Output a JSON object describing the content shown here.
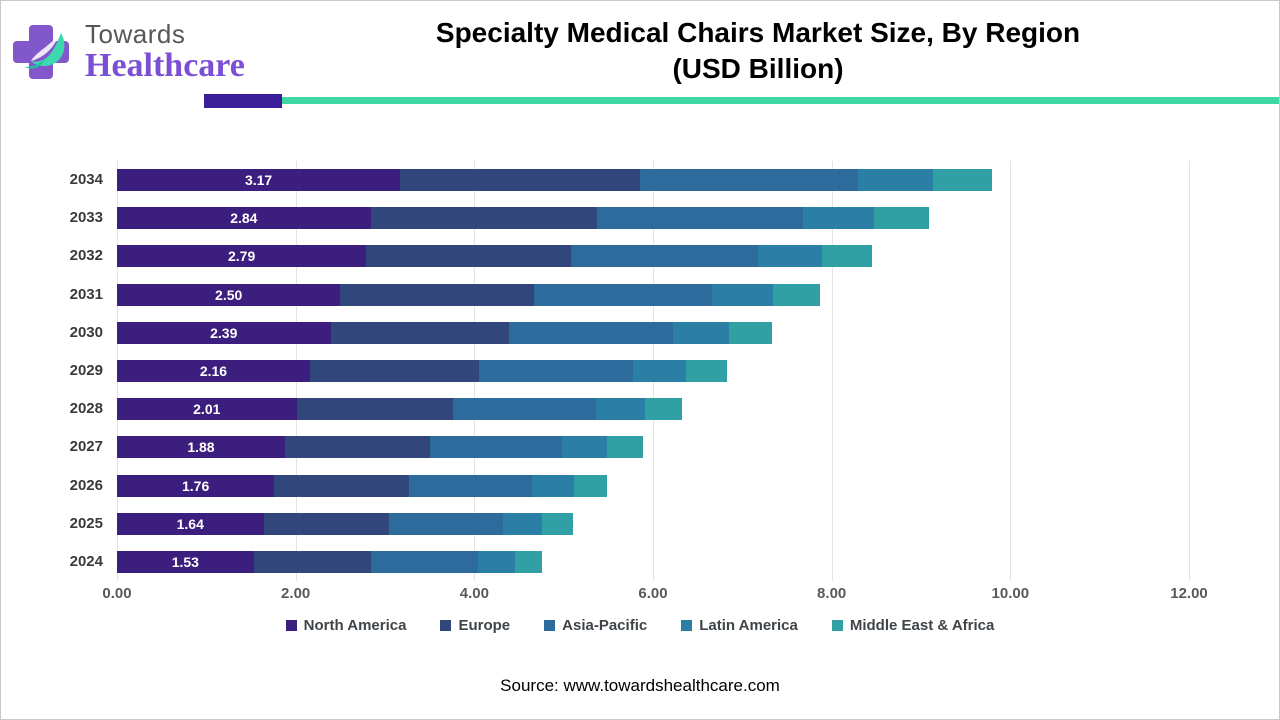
{
  "logo": {
    "towards": "Towards",
    "healthcare": "Healthcare",
    "cross_color": "#8257cb",
    "leaf_color": "#3fd8ae",
    "leaf_dark": "#20c3a0"
  },
  "header": {
    "title_line1": "Specialty Medical Chairs Market Size, By Region",
    "title_line2": "(USD Billion)",
    "underline_accent_color": "#3a1d99",
    "underline_color": "#3fd8a4"
  },
  "source_text": "Source: www.towardshealthcare.com",
  "chart_data": {
    "type": "bar",
    "orientation": "horizontal",
    "stacked": true,
    "title": "Specialty Medical Chairs Market Size, By Region (USD Billion)",
    "xlabel": "",
    "ylabel": "",
    "xlim": [
      0,
      12
    ],
    "grid": "vertical",
    "legend_position": "bottom",
    "categories": [
      "2034",
      "2033",
      "2032",
      "2031",
      "2030",
      "2029",
      "2028",
      "2027",
      "2026",
      "2025",
      "2024"
    ],
    "series": [
      {
        "name": "North America",
        "color": "#3b1e7d",
        "values": [
          3.17,
          2.84,
          2.79,
          2.5,
          2.39,
          2.16,
          2.01,
          1.88,
          1.76,
          1.64,
          1.53
        ]
      },
      {
        "name": "Europe",
        "color": "#31477c",
        "values": [
          2.68,
          2.53,
          2.29,
          2.17,
          2.0,
          1.89,
          1.75,
          1.62,
          1.51,
          1.4,
          1.31
        ]
      },
      {
        "name": "Asia-Pacific",
        "color": "#2e6b9d",
        "values": [
          2.45,
          2.31,
          2.09,
          1.99,
          1.83,
          1.73,
          1.6,
          1.48,
          1.38,
          1.28,
          1.2
        ]
      },
      {
        "name": "Latin America",
        "color": "#2c7fa4",
        "values": [
          0.84,
          0.79,
          0.72,
          0.68,
          0.63,
          0.59,
          0.55,
          0.51,
          0.47,
          0.44,
          0.41
        ]
      },
      {
        "name": "Middle East & Africa",
        "color": "#31a0a4",
        "values": [
          0.65,
          0.62,
          0.56,
          0.53,
          0.48,
          0.46,
          0.42,
          0.4,
          0.36,
          0.34,
          0.31
        ]
      }
    ],
    "labeled_series": "North America",
    "bar_labels": [
      "3.17",
      "2.84",
      "2.79",
      "2.50",
      "2.39",
      "2.16",
      "2.01",
      "1.88",
      "1.76",
      "1.64",
      "1.53"
    ],
    "x_ticks": [
      0,
      2,
      4,
      6,
      8,
      10,
      12
    ],
    "x_tick_labels": [
      "0.00",
      "2.00",
      "4.00",
      "6.00",
      "8.00",
      "10.00",
      "12.00"
    ]
  }
}
